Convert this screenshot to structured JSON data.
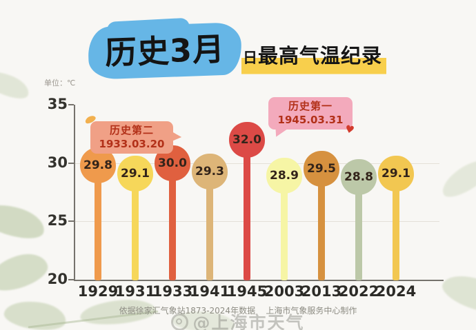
{
  "title": {
    "highlight": "历史3月",
    "day": "日",
    "rest": "最高气温纪录"
  },
  "unit_label": "单位：℃",
  "chart_data": {
    "type": "bar",
    "subtype": "lollipop",
    "title": "历史3月日最高气温纪录",
    "ylabel": "单位：℃",
    "categories": [
      "1929",
      "1931",
      "1933",
      "1941",
      "1945",
      "2003",
      "2013",
      "2022",
      "2024"
    ],
    "values": [
      29.8,
      29.1,
      30.0,
      29.3,
      32.0,
      28.9,
      29.5,
      28.8,
      29.1
    ],
    "colors": [
      "#ef9a4c",
      "#f6d75a",
      "#e0603f",
      "#ddb578",
      "#dc4a46",
      "#f6f5a5",
      "#d6913f",
      "#bcc8a8",
      "#f2c751"
    ],
    "ylim": [
      20,
      35
    ],
    "yticks": [
      35,
      30,
      25,
      20
    ],
    "grid_values": [
      30,
      25
    ],
    "grid": true,
    "legend": false,
    "annotations": [
      {
        "label": "历史第一",
        "date": "1945.03.31",
        "target_year": "1945",
        "bubble_color": "#f3aabc",
        "text_color": "#b23018"
      },
      {
        "label": "历史第二",
        "date": "1933.03.20",
        "target_year": "1933",
        "bubble_color": "#f0a086",
        "text_color": "#b23018"
      }
    ]
  },
  "icons": {
    "heart": "♥",
    "leaf": "leaf-shape",
    "watermark_camera": "camera-circle"
  },
  "footer": {
    "source": "依据徐家汇气象站1873-2024年数据    上海市气象服务中心制作",
    "watermark": "@上海市天气"
  },
  "colors": {
    "background": "#f8f7f4",
    "title_blob": "#66b6e6",
    "title_highlight": "#f8cf4c",
    "axis": "#75726c",
    "grid": "#e4e0d8",
    "tick_label": "#33322d",
    "value_text": "#33241a",
    "leaf_decoration": "#b9c8a3"
  }
}
